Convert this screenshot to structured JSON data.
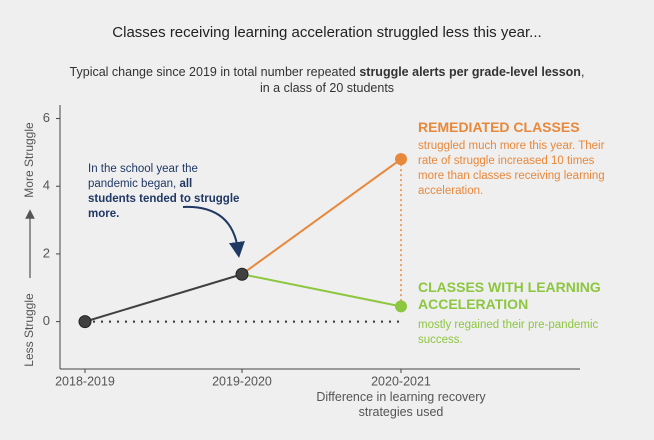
{
  "chart_data": {
    "type": "line",
    "title": "Classes receiving learning acceleration struggled less this year...",
    "subtitle": [
      "Typical change since 2019 in total number repeated ",
      "struggle alerts per grade-level lesson",
      ", in a class of 20 students"
    ],
    "categories": [
      "2018-2019",
      "2019-2020",
      "2020-2021"
    ],
    "x_label": "Difference in learning recovery strategies used",
    "y_label_low": "Less Struggle",
    "y_label_high": "More Struggle",
    "ylim": [
      -1.4,
      6.4
    ],
    "yticks": [
      0,
      2,
      4,
      6
    ],
    "baseline": 0,
    "series": [
      {
        "color": "#404040",
        "values": [
          0,
          1.4,
          null
        ]
      },
      {
        "name": "REMEDIATED CLASSES",
        "color": "#e8883a",
        "values": [
          null,
          1.4,
          4.8
        ],
        "note": "struggled much more this year. Their rate of struggle increased 10 times more than classes receiving learning acceleration."
      },
      {
        "name": "CLASSES WITH LEARNING ACCELERATION",
        "color": "#8dc63f",
        "values": [
          null,
          1.4,
          0.45
        ],
        "note": "mostly regained their pre-pandemic success."
      }
    ],
    "annotation": [
      "In the school year the pandemic began, ",
      "all students tended to struggle more."
    ]
  }
}
